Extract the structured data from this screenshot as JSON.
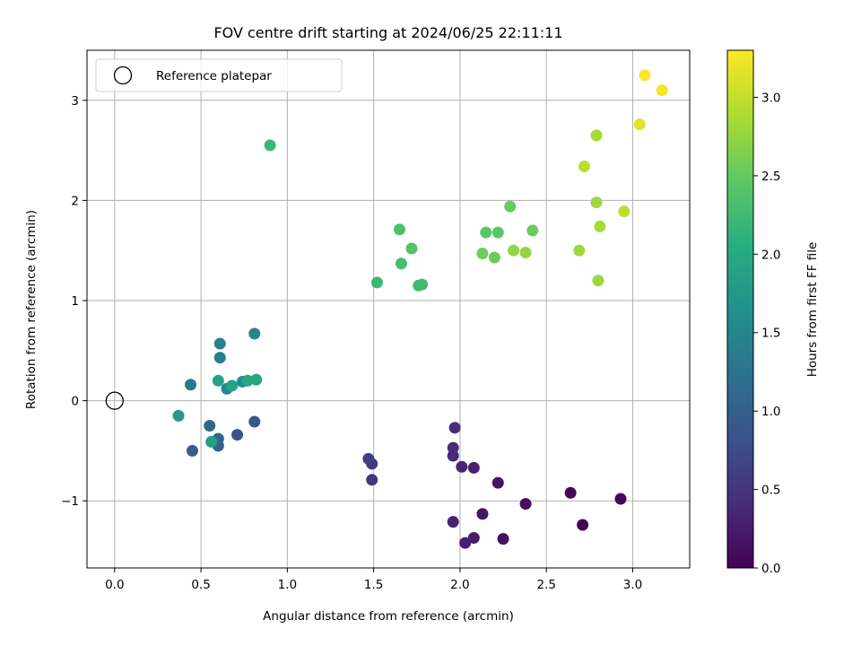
{
  "chart_data": {
    "type": "scatter",
    "title": "FOV centre drift starting at 2024/06/25 22:11:11",
    "xlabel": "Angular distance from reference (arcmin)",
    "ylabel": "Rotation from reference (arcmin)",
    "xlim": [
      -0.16,
      3.33
    ],
    "ylim": [
      -1.67,
      3.5
    ],
    "xticks": [
      "0.0",
      "0.5",
      "1.0",
      "1.5",
      "2.0",
      "2.5",
      "3.0"
    ],
    "yticks": [
      "−1",
      "0",
      "1",
      "2",
      "3"
    ],
    "grid": true,
    "legend": {
      "position": "top-left",
      "entries": [
        "Reference platepar"
      ]
    },
    "reference_point": {
      "x": 0.0,
      "y": 0.0
    },
    "colorbar": {
      "label": "Hours from first FF file",
      "range": [
        0.0,
        3.3
      ],
      "ticks": [
        "0.0",
        "0.5",
        "1.0",
        "1.5",
        "2.0",
        "2.5",
        "3.0"
      ],
      "colormap": "viridis"
    },
    "points": [
      {
        "x": 2.71,
        "y": -1.24,
        "h": 0.02
      },
      {
        "x": 2.64,
        "y": -0.92,
        "h": 0.05
      },
      {
        "x": 2.93,
        "y": -0.98,
        "h": 0.08
      },
      {
        "x": 2.38,
        "y": -1.03,
        "h": 0.12
      },
      {
        "x": 2.25,
        "y": -1.38,
        "h": 0.15
      },
      {
        "x": 2.22,
        "y": -0.82,
        "h": 0.18
      },
      {
        "x": 2.13,
        "y": -1.13,
        "h": 0.22
      },
      {
        "x": 2.08,
        "y": -1.37,
        "h": 0.25
      },
      {
        "x": 2.03,
        "y": -1.42,
        "h": 0.28
      },
      {
        "x": 2.08,
        "y": -0.67,
        "h": 0.3
      },
      {
        "x": 1.96,
        "y": -1.21,
        "h": 0.32
      },
      {
        "x": 2.01,
        "y": -0.66,
        "h": 0.35
      },
      {
        "x": 1.96,
        "y": -0.55,
        "h": 0.38
      },
      {
        "x": 1.96,
        "y": -0.47,
        "h": 0.4
      },
      {
        "x": 1.97,
        "y": -0.27,
        "h": 0.42
      },
      {
        "x": 1.49,
        "y": -0.79,
        "h": 0.5
      },
      {
        "x": 1.49,
        "y": -0.63,
        "h": 0.55
      },
      {
        "x": 1.47,
        "y": -0.58,
        "h": 0.6
      },
      {
        "x": 0.71,
        "y": -0.34,
        "h": 0.85
      },
      {
        "x": 0.81,
        "y": -0.21,
        "h": 0.9
      },
      {
        "x": 0.45,
        "y": -0.5,
        "h": 0.95
      },
      {
        "x": 0.6,
        "y": -0.45,
        "h": 1.0
      },
      {
        "x": 0.6,
        "y": -0.38,
        "h": 1.05
      },
      {
        "x": 0.55,
        "y": -0.25,
        "h": 1.1
      },
      {
        "x": 0.44,
        "y": 0.16,
        "h": 1.35
      },
      {
        "x": 0.61,
        "y": 0.43,
        "h": 1.4
      },
      {
        "x": 0.61,
        "y": 0.57,
        "h": 1.45
      },
      {
        "x": 0.81,
        "y": 0.67,
        "h": 1.5
      },
      {
        "x": 0.65,
        "y": 0.12,
        "h": 1.55
      },
      {
        "x": 0.74,
        "y": 0.19,
        "h": 1.6
      },
      {
        "x": 0.37,
        "y": -0.15,
        "h": 1.8
      },
      {
        "x": 0.56,
        "y": -0.41,
        "h": 1.85
      },
      {
        "x": 0.6,
        "y": 0.2,
        "h": 1.9
      },
      {
        "x": 0.68,
        "y": 0.15,
        "h": 1.9
      },
      {
        "x": 0.77,
        "y": 0.2,
        "h": 1.95
      },
      {
        "x": 0.82,
        "y": 0.21,
        "h": 1.95
      },
      {
        "x": 0.9,
        "y": 2.55,
        "h": 2.2
      },
      {
        "x": 1.52,
        "y": 1.18,
        "h": 2.2
      },
      {
        "x": 1.76,
        "y": 1.15,
        "h": 2.25
      },
      {
        "x": 1.78,
        "y": 1.16,
        "h": 2.25
      },
      {
        "x": 1.66,
        "y": 1.37,
        "h": 2.3
      },
      {
        "x": 1.65,
        "y": 1.71,
        "h": 2.35
      },
      {
        "x": 1.72,
        "y": 1.52,
        "h": 2.4
      },
      {
        "x": 2.15,
        "y": 1.68,
        "h": 2.45
      },
      {
        "x": 2.22,
        "y": 1.68,
        "h": 2.45
      },
      {
        "x": 2.29,
        "y": 1.94,
        "h": 2.5
      },
      {
        "x": 2.13,
        "y": 1.47,
        "h": 2.55
      },
      {
        "x": 2.2,
        "y": 1.43,
        "h": 2.55
      },
      {
        "x": 2.42,
        "y": 1.7,
        "h": 2.55
      },
      {
        "x": 2.31,
        "y": 1.5,
        "h": 2.75
      },
      {
        "x": 2.38,
        "y": 1.48,
        "h": 2.75
      },
      {
        "x": 2.69,
        "y": 1.5,
        "h": 2.8
      },
      {
        "x": 2.8,
        "y": 1.2,
        "h": 2.8
      },
      {
        "x": 2.79,
        "y": 1.98,
        "h": 2.8
      },
      {
        "x": 2.81,
        "y": 1.74,
        "h": 2.85
      },
      {
        "x": 2.79,
        "y": 2.65,
        "h": 2.85
      },
      {
        "x": 2.95,
        "y": 1.89,
        "h": 2.95
      },
      {
        "x": 2.72,
        "y": 2.34,
        "h": 2.95
      },
      {
        "x": 3.04,
        "y": 2.76,
        "h": 3.15
      },
      {
        "x": 3.07,
        "y": 3.25,
        "h": 3.28
      },
      {
        "x": 3.17,
        "y": 3.1,
        "h": 3.25
      }
    ]
  }
}
